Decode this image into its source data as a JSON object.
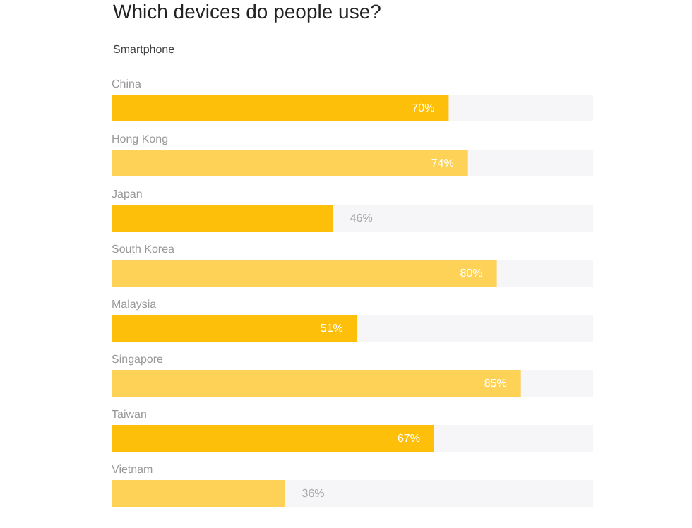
{
  "chart_data": {
    "type": "bar",
    "orientation": "horizontal",
    "title": "Which devices do people use?",
    "subtitle": "Smartphone",
    "categories": [
      "China",
      "Hong Kong",
      "Japan",
      "South Korea",
      "Malaysia",
      "Singapore",
      "Taiwan",
      "Vietnam"
    ],
    "values": [
      70,
      74,
      46,
      80,
      51,
      85,
      67,
      36
    ],
    "value_labels": [
      "70%",
      "74%",
      "46%",
      "80%",
      "51%",
      "85%",
      "67%",
      "36%"
    ],
    "colors": [
      "#fdbf0a",
      "#fdd257",
      "#fdbf0a",
      "#fdd257",
      "#fdbf0a",
      "#fdd257",
      "#fdbf0a",
      "#fdd257"
    ],
    "xlim": [
      0,
      100
    ],
    "tick_labels": "y"
  }
}
